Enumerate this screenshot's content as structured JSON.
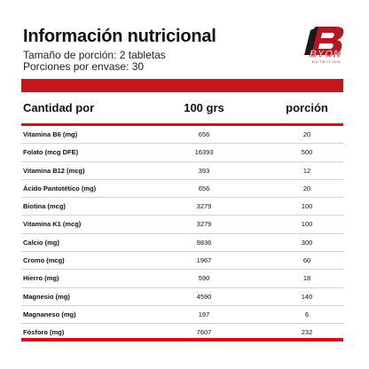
{
  "header": {
    "title": "Información nutricional",
    "serving_size": "Tamaño de porción: 2 tabletas",
    "servings_per_container": "Porciones por envase: 30"
  },
  "brand": {
    "logo_letter": "B",
    "wordmark": "BYON",
    "tagline": "NUTRITION",
    "accent_color": "#c4161c"
  },
  "table": {
    "columns": [
      "Cantidad por",
      "100 grs",
      "porción"
    ],
    "rows": [
      {
        "name": "Vitamina B6 (mg)",
        "per_100g": "656",
        "per_serving": "20"
      },
      {
        "name": "Folato (mcg DFE)",
        "per_100g": "16393",
        "per_serving": "500"
      },
      {
        "name": "Vitamina B12 (mcg)",
        "per_100g": "393",
        "per_serving": "12"
      },
      {
        "name": "Ácido Pantotético (mg)",
        "per_100g": "656",
        "per_serving": "20"
      },
      {
        "name": "Biotina (mcg)",
        "per_100g": "3279",
        "per_serving": "100"
      },
      {
        "name": "Vitamina K1 (mcg)",
        "per_100g": "3279",
        "per_serving": "100"
      },
      {
        "name": "Calcio (mg)",
        "per_100g": "9836",
        "per_serving": "300"
      },
      {
        "name": "Cromo (mcg)",
        "per_100g": "1967",
        "per_serving": "60"
      },
      {
        "name": "Hierro (mg)",
        "per_100g": "590",
        "per_serving": "18"
      },
      {
        "name": "Magnesio (mg)",
        "per_100g": "4590",
        "per_serving": "140"
      },
      {
        "name": "Magnaneso (mg)",
        "per_100g": "197",
        "per_serving": "6"
      },
      {
        "name": "Fósforo (mg)",
        "per_100g": "7607",
        "per_serving": "232"
      }
    ]
  }
}
